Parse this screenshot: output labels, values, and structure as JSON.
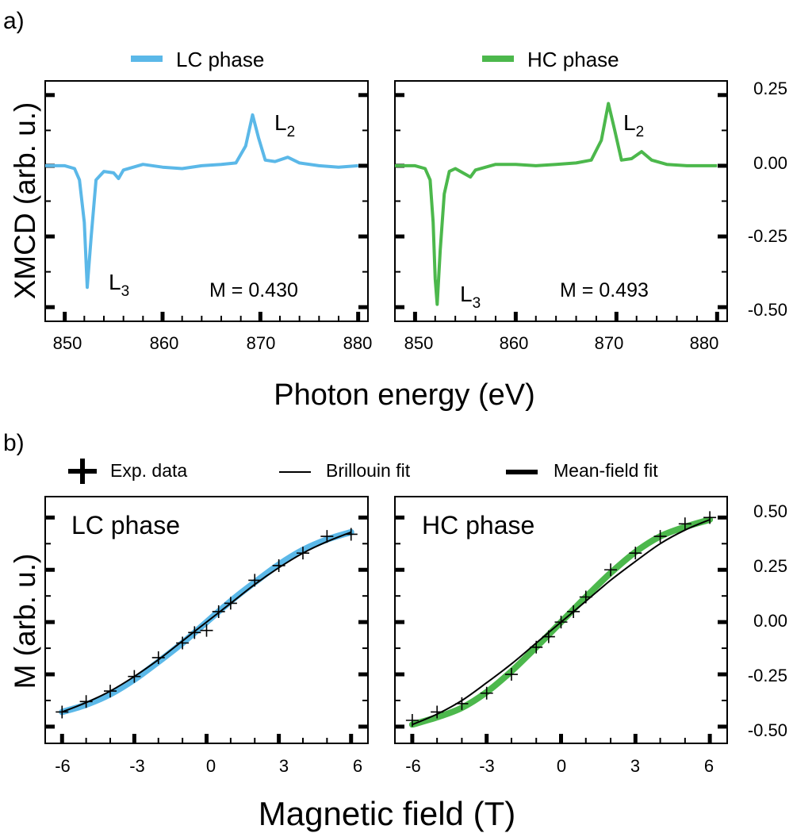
{
  "panels": {
    "a": {
      "label": "a)"
    },
    "b": {
      "label": "b)"
    }
  },
  "colors": {
    "lc": "#5bb8e8",
    "hc": "#4cb84c",
    "axis": "#000000"
  },
  "top": {
    "legend": [
      "LC phase",
      "HC phase"
    ],
    "ylabel": "XMCD (arb. u.)",
    "xlabel": "Photon energy (eV)",
    "xticks": [
      "850",
      "860",
      "870",
      "880"
    ],
    "yticks": [
      "0.25",
      "0.00",
      "-0.25",
      "-0.50"
    ],
    "peak_labels": {
      "l3": "L",
      "l3_sub": "3",
      "l2": "L",
      "l2_sub": "2"
    },
    "annotations": [
      "M = 0.430",
      "M = 0.493"
    ]
  },
  "bottom": {
    "legend": [
      "Exp. data",
      "Brillouin fit",
      "Mean-field fit"
    ],
    "titles": [
      "LC phase",
      "HC phase"
    ],
    "ylabel": "M (arb. u.)",
    "xlabel": "Magnetic field (T)",
    "xticks": [
      "-6",
      "-3",
      "0",
      "3",
      "6"
    ],
    "yticks": [
      "0.50",
      "0.25",
      "0.00",
      "-0.25",
      "-0.50"
    ]
  },
  "chart_data": [
    {
      "type": "line",
      "panel": "a-left",
      "series": [
        {
          "name": "LC phase",
          "x": [
            848,
            850,
            851,
            851.5,
            852,
            852.3,
            852.7,
            853.2,
            854,
            855,
            855.5,
            856,
            858,
            860,
            862,
            864,
            866,
            867.5,
            868.5,
            869.2,
            869.8,
            870.5,
            871.5,
            872.8,
            874,
            876,
            878,
            880
          ],
          "y": [
            0,
            0,
            -0.01,
            -0.05,
            -0.2,
            -0.43,
            -0.25,
            -0.05,
            -0.02,
            -0.025,
            -0.045,
            -0.015,
            0.005,
            -0.005,
            -0.01,
            0,
            0.005,
            0.01,
            0.07,
            0.18,
            0.1,
            0.02,
            0.015,
            0.03,
            0.01,
            0,
            -0.005,
            0
          ]
        }
      ],
      "annotation": "M = 0.430",
      "xlim": [
        848,
        881
      ],
      "ylim": [
        -0.55,
        0.3
      ]
    },
    {
      "type": "line",
      "panel": "a-right",
      "series": [
        {
          "name": "HC phase",
          "x": [
            848,
            850,
            851,
            851.5,
            851.8,
            852,
            852.2,
            852.5,
            852.9,
            853.4,
            854,
            855,
            855.5,
            856,
            858,
            860,
            862,
            864,
            866,
            867.5,
            868.5,
            869.2,
            869.8,
            870.5,
            871.5,
            872.5,
            873.5,
            875,
            877,
            880
          ],
          "y": [
            0,
            0,
            -0.01,
            -0.05,
            -0.2,
            -0.4,
            -0.49,
            -0.3,
            -0.1,
            -0.02,
            -0.01,
            -0.03,
            -0.04,
            -0.015,
            0.005,
            0.005,
            0,
            0.005,
            0.01,
            0.02,
            0.09,
            0.22,
            0.13,
            0.02,
            0.025,
            0.05,
            0.02,
            0.005,
            0,
            0
          ]
        }
      ],
      "annotation": "M = 0.493",
      "xlim": [
        848,
        881
      ],
      "ylim": [
        -0.55,
        0.3
      ]
    },
    {
      "type": "scatter",
      "panel": "b-left",
      "title": "LC phase",
      "series": [
        {
          "name": "Exp. data",
          "x": [
            -6,
            -5,
            -4,
            -3,
            -2,
            -1,
            -0.5,
            0,
            0.5,
            1,
            2,
            3,
            4,
            5,
            6
          ],
          "y": [
            -0.43,
            -0.38,
            -0.33,
            -0.26,
            -0.17,
            -0.1,
            -0.05,
            -0.04,
            0.05,
            0.09,
            0.2,
            0.27,
            0.33,
            0.41,
            0.42
          ]
        },
        {
          "name": "Brillouin fit",
          "x": [
            -6,
            -5,
            -4,
            -3,
            -2,
            -1,
            0,
            1,
            2,
            3,
            4,
            5,
            6
          ],
          "y": [
            -0.43,
            -0.385,
            -0.33,
            -0.26,
            -0.18,
            -0.09,
            0,
            0.09,
            0.18,
            0.26,
            0.33,
            0.385,
            0.43
          ]
        },
        {
          "name": "Mean-field fit",
          "x": [
            -6,
            -5,
            -4,
            -3,
            -2,
            -1,
            0,
            1,
            2,
            3,
            4,
            5,
            6
          ],
          "y": [
            -0.43,
            -0.395,
            -0.345,
            -0.275,
            -0.19,
            -0.1,
            0,
            0.1,
            0.19,
            0.275,
            0.345,
            0.395,
            0.43
          ]
        }
      ],
      "xlim": [
        -6.7,
        6.7
      ],
      "ylim": [
        -0.58,
        0.6
      ]
    },
    {
      "type": "scatter",
      "panel": "b-right",
      "title": "HC phase",
      "series": [
        {
          "name": "Exp. data",
          "x": [
            -6,
            -5,
            -4,
            -3,
            -2,
            -1,
            -0.5,
            0,
            0.5,
            1,
            2,
            3,
            4,
            5,
            6
          ],
          "y": [
            -0.47,
            -0.43,
            -0.39,
            -0.34,
            -0.25,
            -0.12,
            -0.07,
            0,
            0.05,
            0.12,
            0.25,
            0.33,
            0.41,
            0.47,
            0.5
          ]
        },
        {
          "name": "Brillouin fit",
          "x": [
            -6,
            -5,
            -4,
            -3,
            -2,
            -1,
            0,
            1,
            2,
            3,
            4,
            5,
            6
          ],
          "y": [
            -0.49,
            -0.44,
            -0.375,
            -0.29,
            -0.2,
            -0.1,
            0,
            0.1,
            0.2,
            0.29,
            0.375,
            0.44,
            0.49
          ]
        },
        {
          "name": "Mean-field fit",
          "x": [
            -6,
            -5,
            -4,
            -3,
            -2,
            -1,
            0,
            1,
            2,
            3,
            4,
            5,
            6
          ],
          "y": [
            -0.49,
            -0.455,
            -0.41,
            -0.335,
            -0.235,
            -0.12,
            0,
            0.12,
            0.235,
            0.335,
            0.41,
            0.455,
            0.49
          ]
        }
      ],
      "xlim": [
        -6.7,
        6.7
      ],
      "ylim": [
        -0.58,
        0.6
      ]
    }
  ]
}
